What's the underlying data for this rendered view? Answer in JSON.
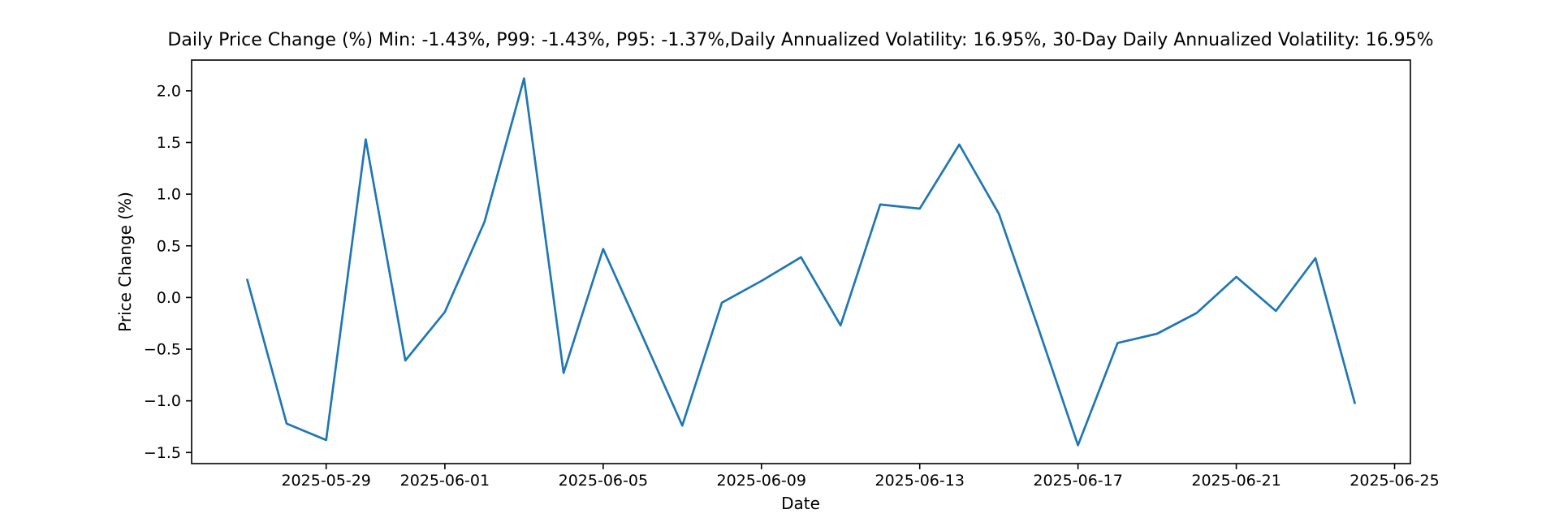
{
  "page": {
    "background_color": "#ffffff",
    "kind": "matplotlib-figure"
  },
  "chart_data": {
    "type": "line",
    "title": "Daily Price Change (%) Min: -1.43%, P99: -1.43%, P95: -1.37%,Daily Annualized Volatility: 16.95%, 30-Day Daily Annualized Volatility: 16.95%",
    "xlabel": "Date",
    "ylabel": "Price Change (%)",
    "line_color": "#1f77b4",
    "axis_color": "#000000",
    "grid": false,
    "legend_position": "none",
    "dates": [
      "2025-05-27",
      "2025-05-28",
      "2025-05-29",
      "2025-05-30",
      "2025-05-31",
      "2025-06-01",
      "2025-06-02",
      "2025-06-03",
      "2025-06-04",
      "2025-06-05",
      "2025-06-06",
      "2025-06-07",
      "2025-06-08",
      "2025-06-09",
      "2025-06-10",
      "2025-06-11",
      "2025-06-12",
      "2025-06-13",
      "2025-06-14",
      "2025-06-15",
      "2025-06-16",
      "2025-06-17",
      "2025-06-18",
      "2025-06-19",
      "2025-06-20",
      "2025-06-21",
      "2025-06-22",
      "2025-06-23",
      "2025-06-24"
    ],
    "values": [
      0.18,
      -1.22,
      -1.38,
      1.53,
      -0.61,
      -0.14,
      0.73,
      2.12,
      -0.73,
      0.47,
      -0.38,
      -1.24,
      -0.05,
      0.16,
      0.39,
      -0.27,
      0.9,
      0.86,
      1.48,
      0.81,
      -0.3,
      -1.43,
      -0.44,
      -0.35,
      -0.15,
      0.2,
      -0.13,
      0.38,
      -1.03
    ],
    "x_tick_dates": [
      "2025-05-29",
      "2025-06-01",
      "2025-06-05",
      "2025-06-09",
      "2025-06-13",
      "2025-06-17",
      "2025-06-21",
      "2025-06-25"
    ],
    "y_tick_values": [
      2.0,
      1.5,
      1.0,
      0.5,
      0.0,
      -0.5,
      -1.0,
      -1.5
    ],
    "y_tick_labels": [
      "2.0",
      "1.5",
      "1.0",
      "0.5",
      "0.0",
      "−0.5",
      "−1.0",
      "−1.5"
    ],
    "ylim": [
      -1.6075,
      2.2975
    ],
    "x_margin_days": 1.4,
    "stats": {
      "min_pct": "-1.43%",
      "p99_pct": "-1.43%",
      "p95_pct": "-1.37%",
      "daily_annualized_volatility": "16.95%",
      "volatility_30d_daily_annualized": "16.95%"
    }
  }
}
